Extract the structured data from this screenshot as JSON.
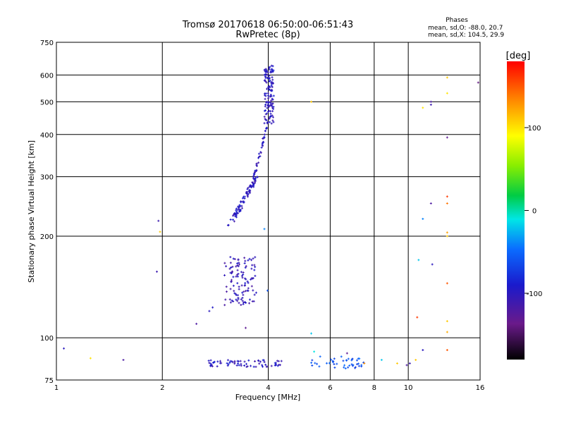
{
  "chart_data": {
    "type": "scatter",
    "title": "Tromsø 20170618 06:50:00-06:51:43",
    "subtitle": "RwPretec (8p)",
    "stats": {
      "heading": "Phases",
      "line1": "mean, sd,O: -88.0, 20.7",
      "line2": "mean, sd,X: 104.5, 29.9"
    },
    "xlabel": "Frequency [MHz]",
    "ylabel": "Stationary phase Virtual Height [km]",
    "xscale": "log",
    "yscale": "log",
    "xlim": [
      1,
      16
    ],
    "ylim": [
      75,
      750
    ],
    "xticks": [
      1,
      2,
      4,
      6,
      8,
      10,
      16
    ],
    "yticks": [
      75,
      100,
      200,
      300,
      400,
      500,
      600,
      750
    ],
    "grid": true,
    "colorbar": {
      "label": "[deg]",
      "range": [
        -180,
        180
      ],
      "ticks": [
        100,
        0,
        -100
      ]
    },
    "clusters": [
      {
        "f": [
          3.1,
          3.7
        ],
        "h": [
          215,
          300
        ],
        "phase": -100,
        "n": 90
      },
      {
        "f": [
          3.65,
          3.95
        ],
        "h": [
          300,
          420
        ],
        "phase": -100,
        "n": 40
      },
      {
        "f": [
          3.9,
          4.15
        ],
        "h": [
          430,
          640
        ],
        "phase": -100,
        "n": 130
      },
      {
        "f": [
          3.0,
          3.7
        ],
        "h": [
          125,
          175
        ],
        "phase": -105,
        "n": 110
      },
      {
        "f": [
          2.7,
          4.4
        ],
        "h": [
          82,
          86
        ],
        "phase": -100,
        "n": 70
      },
      {
        "f": [
          5.3,
          7.5
        ],
        "h": [
          81,
          88
        ],
        "phase": -60,
        "n": 45
      }
    ],
    "points": [
      {
        "f": 1.05,
        "h": 93,
        "phase": -100
      },
      {
        "f": 1.25,
        "h": 87,
        "phase": 100
      },
      {
        "f": 1.55,
        "h": 86,
        "phase": -120
      },
      {
        "f": 1.95,
        "h": 222,
        "phase": -110
      },
      {
        "f": 1.97,
        "h": 206,
        "phase": 110
      },
      {
        "f": 1.93,
        "h": 157,
        "phase": -110
      },
      {
        "f": 2.5,
        "h": 110,
        "phase": -120
      },
      {
        "f": 2.72,
        "h": 120,
        "phase": -100
      },
      {
        "f": 2.78,
        "h": 123,
        "phase": -95
      },
      {
        "f": 3.45,
        "h": 107,
        "phase": -130
      },
      {
        "f": 3.9,
        "h": 210,
        "phase": -40
      },
      {
        "f": 3.98,
        "h": 138,
        "phase": -60
      },
      {
        "f": 5.3,
        "h": 103,
        "phase": -20
      },
      {
        "f": 5.3,
        "h": 500,
        "phase": 110
      },
      {
        "f": 5.4,
        "h": 91,
        "phase": -10
      },
      {
        "f": 6.7,
        "h": 90,
        "phase": -130
      },
      {
        "f": 7.5,
        "h": 84,
        "phase": 130
      },
      {
        "f": 8.4,
        "h": 86,
        "phase": -20
      },
      {
        "f": 9.3,
        "h": 84,
        "phase": 110
      },
      {
        "f": 9.9,
        "h": 83,
        "phase": -120
      },
      {
        "f": 10.1,
        "h": 84,
        "phase": -110
      },
      {
        "f": 10.5,
        "h": 86,
        "phase": 110
      },
      {
        "f": 10.6,
        "h": 115,
        "phase": 160
      },
      {
        "f": 10.7,
        "h": 170,
        "phase": -20
      },
      {
        "f": 11.0,
        "h": 92,
        "phase": -100
      },
      {
        "f": 11.0,
        "h": 225,
        "phase": -40
      },
      {
        "f": 11.0,
        "h": 480,
        "phase": 100
      },
      {
        "f": 11.6,
        "h": 490,
        "phase": -110
      },
      {
        "f": 11.6,
        "h": 500,
        "phase": -120
      },
      {
        "f": 11.6,
        "h": 250,
        "phase": -120
      },
      {
        "f": 11.7,
        "h": 165,
        "phase": -100
      },
      {
        "f": 12.9,
        "h": 92,
        "phase": 150
      },
      {
        "f": 12.9,
        "h": 104,
        "phase": 120
      },
      {
        "f": 12.9,
        "h": 112,
        "phase": 110
      },
      {
        "f": 12.9,
        "h": 145,
        "phase": 150
      },
      {
        "f": 12.9,
        "h": 200,
        "phase": 110
      },
      {
        "f": 12.9,
        "h": 205,
        "phase": 125
      },
      {
        "f": 12.9,
        "h": 250,
        "phase": 140
      },
      {
        "f": 12.9,
        "h": 262,
        "phase": 160
      },
      {
        "f": 12.9,
        "h": 392,
        "phase": -130
      },
      {
        "f": 12.9,
        "h": 530,
        "phase": 100
      },
      {
        "f": 12.9,
        "h": 590,
        "phase": 110
      },
      {
        "f": 15.8,
        "h": 570,
        "phase": -140
      }
    ]
  }
}
